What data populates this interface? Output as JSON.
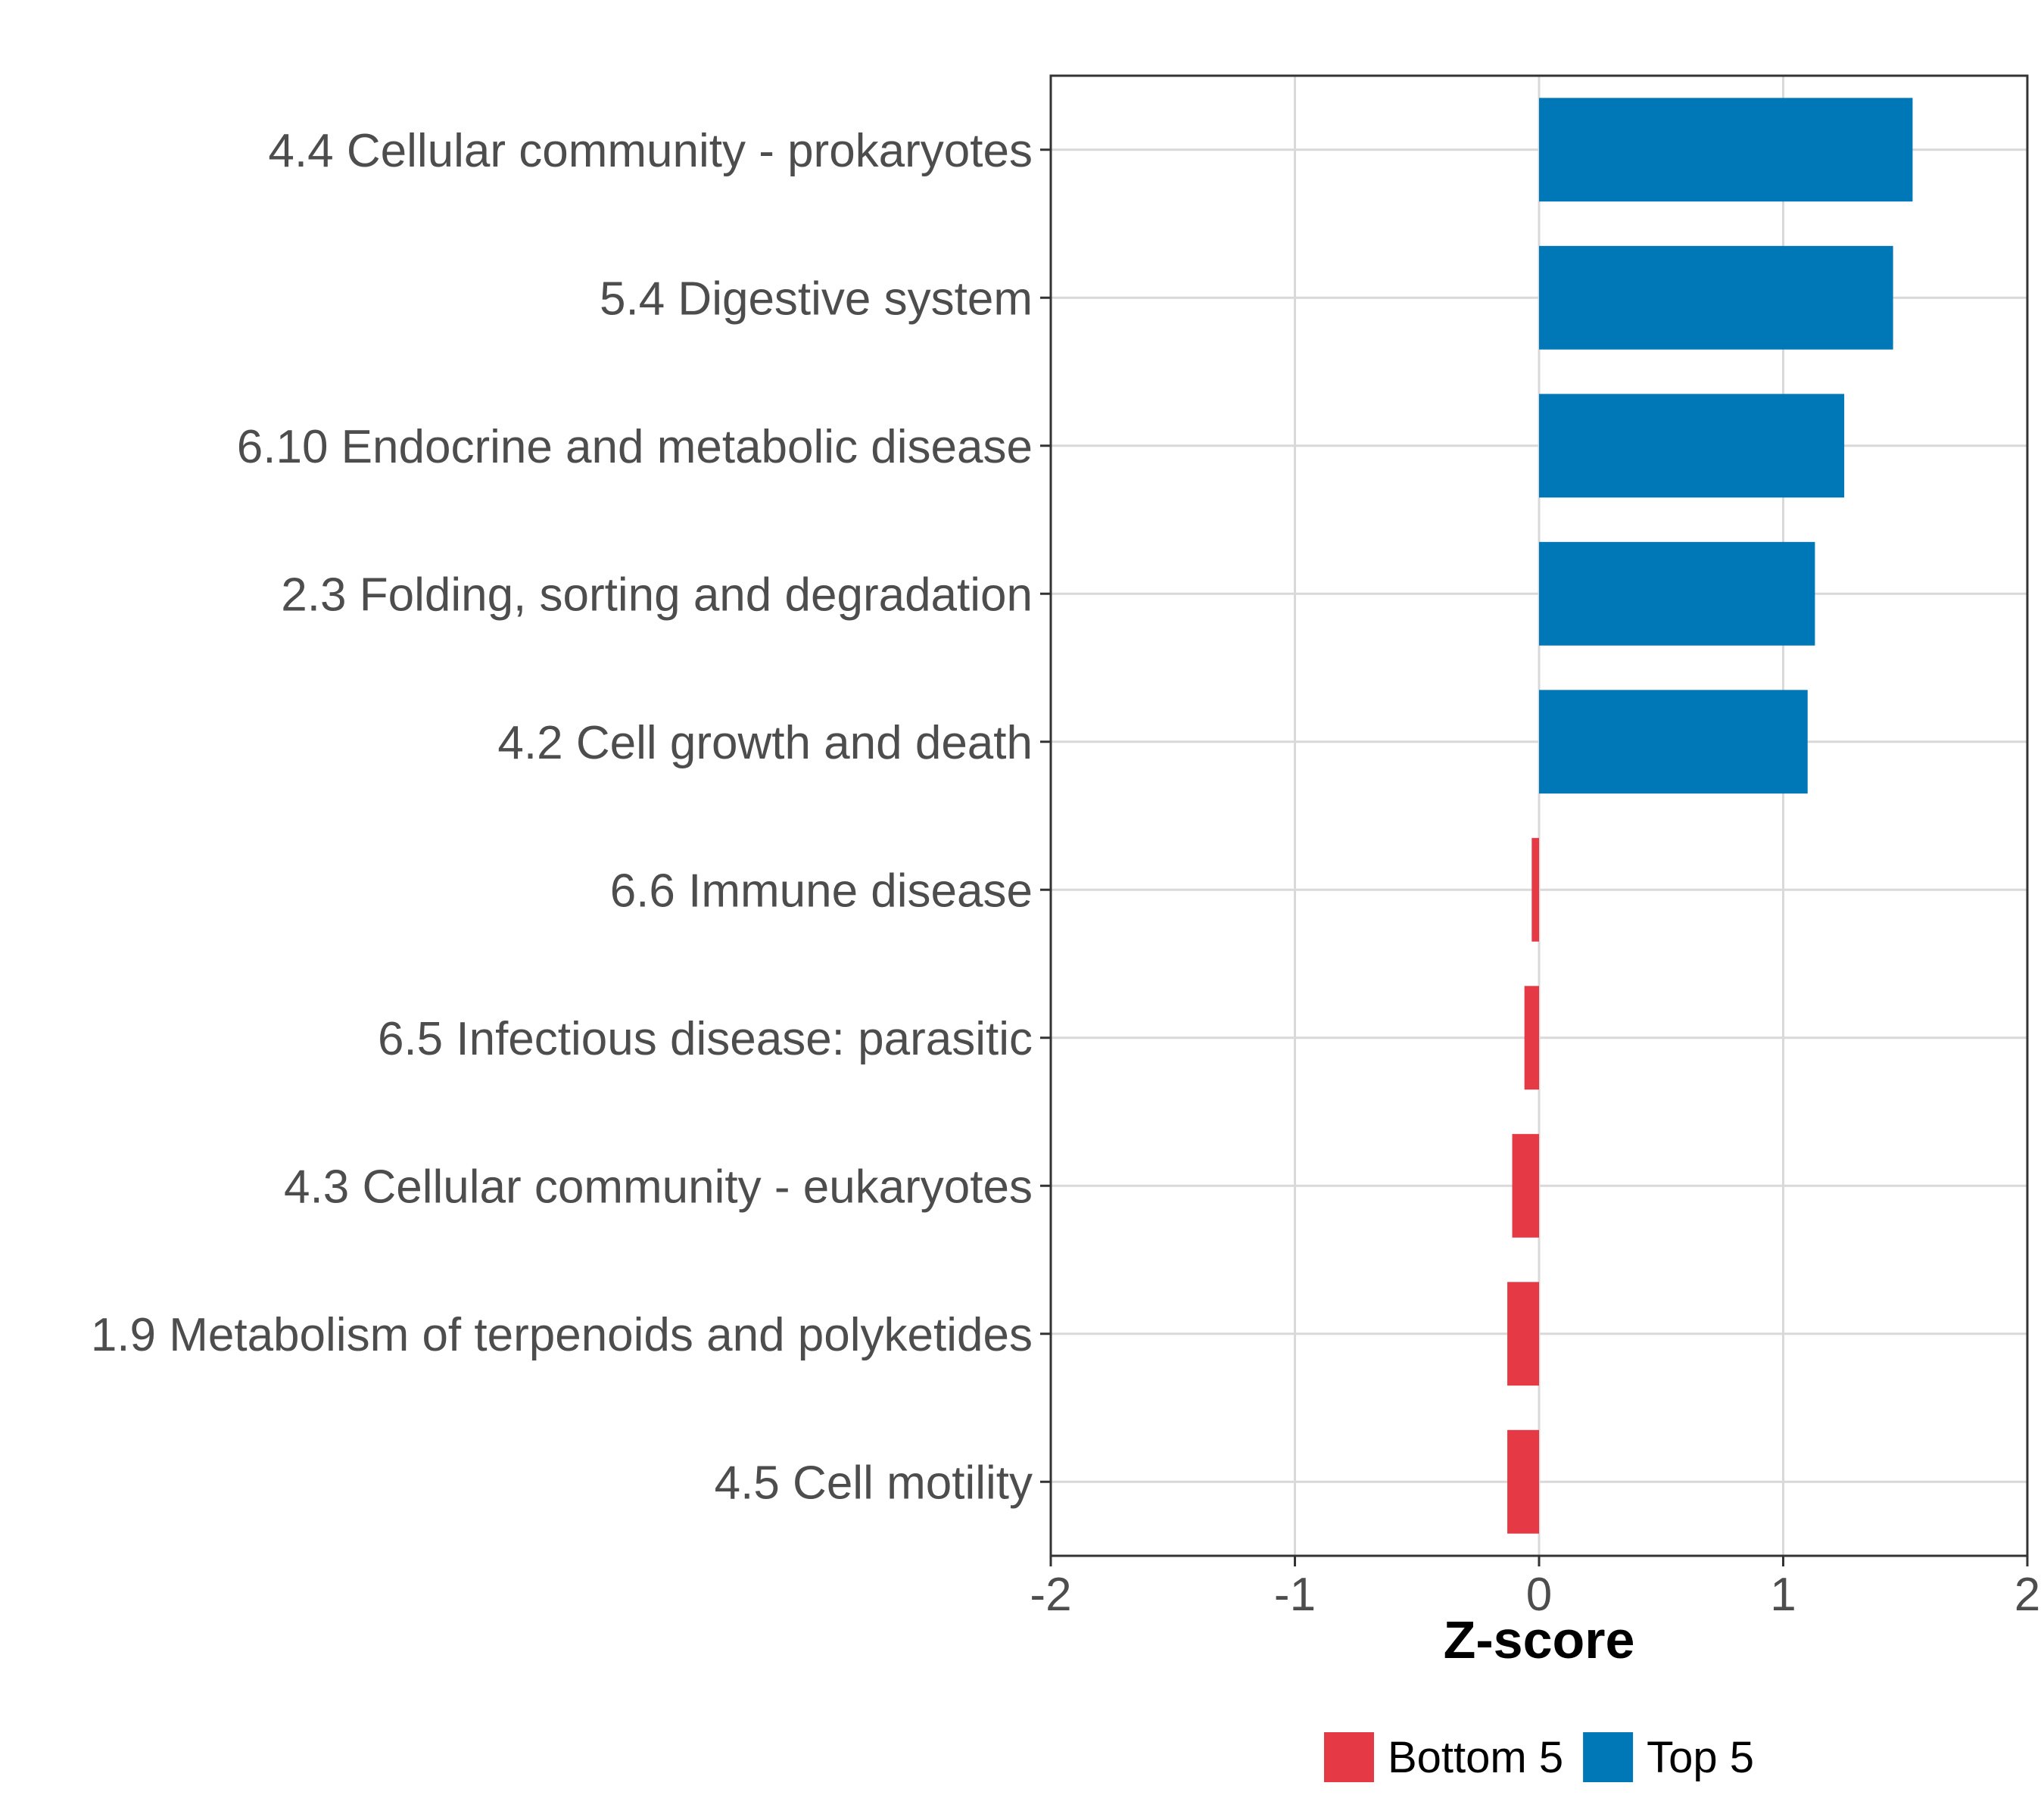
{
  "chart_data": {
    "type": "bar",
    "orientation": "horizontal",
    "categories": [
      "4.4 Cellular community - prokaryotes",
      "5.4 Digestive system",
      "6.10 Endocrine and metabolic disease",
      "2.3 Folding, sorting and degradation",
      "4.2 Cell growth and death",
      "6.6 Immune disease",
      "6.5 Infectious disease: parasitic",
      "4.3 Cellular community - eukaryotes",
      "1.9 Metabolism of terpenoids and polyketides",
      "4.5 Cell motility"
    ],
    "values": [
      1.53,
      1.45,
      1.25,
      1.13,
      1.1,
      -0.03,
      -0.06,
      -0.11,
      -0.13,
      -0.13
    ],
    "groups": [
      "Top 5",
      "Top 5",
      "Top 5",
      "Top 5",
      "Top 5",
      "Bottom 5",
      "Bottom 5",
      "Bottom 5",
      "Bottom 5",
      "Bottom 5"
    ],
    "xlabel": "Z-score",
    "ylabel": "",
    "xlim": [
      -2,
      2
    ],
    "xticks": [
      -2,
      -1,
      0,
      1,
      2
    ],
    "xtick_labels": [
      "-2",
      "-1",
      "0",
      "1",
      "2"
    ],
    "grid": true,
    "legend": {
      "position": "bottom",
      "items": [
        {
          "label": "Bottom 5",
          "color": "#e63946"
        },
        {
          "label": "Top 5",
          "color": "#0077b6"
        }
      ]
    },
    "colors": {
      "Top 5": "#0077b6",
      "Bottom 5": "#e63946"
    }
  }
}
